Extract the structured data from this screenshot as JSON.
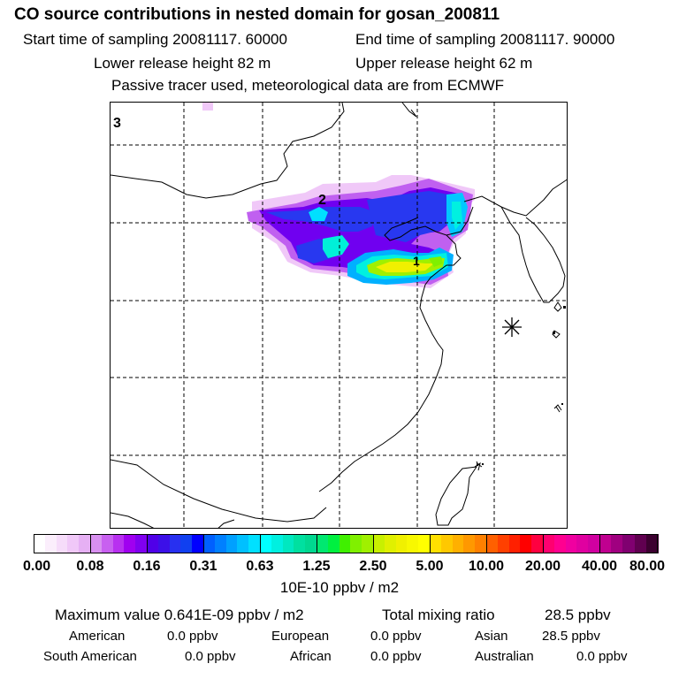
{
  "header": {
    "title": "CO  source contributions in nested domain for gosan_200811",
    "start_time": "Start time of sampling 20081117. 60000",
    "end_time": "End time of sampling 20081117. 90000",
    "lower_release": "Lower release height   82 m",
    "upper_release": "Upper release height   62 m",
    "tracer_note": "Passive tracer used, meteorological data are from ECMWF"
  },
  "map": {
    "corner_label": "3",
    "marker_1": "1",
    "marker_2": "2",
    "receptor_symbol": "star-marker"
  },
  "colorbar": {
    "ticks": [
      "0.00",
      "0.08",
      "0.16",
      "0.31",
      "0.63",
      "1.25",
      "2.50",
      "5.00",
      "10.00",
      "20.00",
      "40.00",
      "80.00"
    ],
    "units": "10E-10 ppbv / m2",
    "colors": [
      [
        "#ffffff",
        "#fbeefc",
        "#f6dcfa",
        "#f0c8f8",
        "#e6b0f4"
      ],
      [
        "#d890f0",
        "#c860f0",
        "#b830f0",
        "#a000f0",
        "#8000f0"
      ],
      [
        "#5000e8",
        "#3c10e8",
        "#2830f0",
        "#1040f0",
        "#0000ff"
      ],
      [
        "#0060ff",
        "#0080ff",
        "#00a0ff",
        "#00c0ff",
        "#00e0ff"
      ],
      [
        "#00ffff",
        "#00f0e0",
        "#00e8c0",
        "#00e0a0",
        "#00d890"
      ],
      [
        "#00e870",
        "#00f040",
        "#40f000",
        "#80f000",
        "#a0f000"
      ],
      [
        "#c8f000",
        "#e0f000",
        "#f0f000",
        "#f8f800",
        "#ffff00"
      ],
      [
        "#ffe000",
        "#ffc800",
        "#ffb000",
        "#ff9800",
        "#ff8000"
      ],
      [
        "#ff6000",
        "#ff4000",
        "#ff2000",
        "#ff0000",
        "#ff0040"
      ],
      [
        "#ff0070",
        "#ff0090",
        "#f000a0",
        "#e000a0",
        "#d000a0"
      ],
      [
        "#c00090",
        "#a00080",
        "#800070",
        "#600050",
        "#3c0030"
      ]
    ]
  },
  "summary": {
    "max_label": "Maximum value  0.641E-09 ppbv / m2",
    "total_label": "Total mixing ratio",
    "total_value": "28.5 ppbv",
    "american_label": "American",
    "american_value": "0.0 ppbv",
    "european_label": "European",
    "european_value": "0.0 ppbv",
    "asian_label": "Asian",
    "asian_value": "28.5 ppbv",
    "south_american_label": "South American",
    "south_american_value": "0.0 ppbv",
    "african_label": "African",
    "african_value": "0.0 ppbv",
    "australian_label": "Australian",
    "australian_value": "0.0 ppbv"
  }
}
